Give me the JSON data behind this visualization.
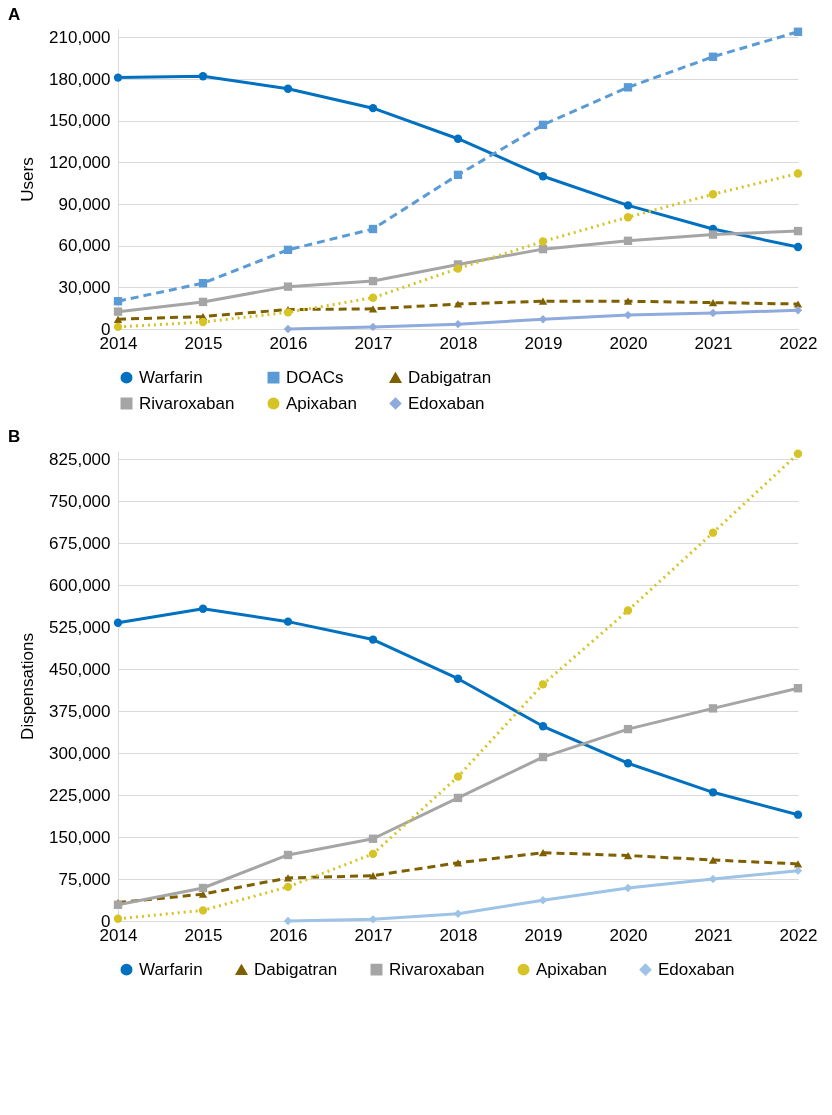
{
  "chart_data": [
    {
      "type": "line",
      "title": "A",
      "ylabel": "Users",
      "categories": [
        "2014",
        "2015",
        "2016",
        "2017",
        "2018",
        "2019",
        "2020",
        "2021",
        "2022"
      ],
      "ylim": [
        0,
        216000
      ],
      "yticks": [
        0,
        {
          "value": 30000,
          "label": "30,000"
        },
        {
          "value": 60000,
          "label": "60,000"
        },
        {
          "value": 90000,
          "label": "90,000"
        },
        {
          "value": 120000,
          "label": "120,000"
        },
        {
          "value": 150000,
          "label": "150,000"
        },
        {
          "value": 180000,
          "label": "180,000"
        },
        {
          "value": 210000,
          "label": "210,000"
        }
      ],
      "grid": "y",
      "legend": "bottom",
      "series": [
        {
          "name": "Warfarin",
          "color": "#0070c0",
          "marker": "circle",
          "line_style": "solid",
          "values": [
            181000,
            182000,
            173000,
            159000,
            137000,
            110000,
            89000,
            72000,
            59000
          ]
        },
        {
          "name": "DOACs",
          "color": "#5b9bd5",
          "marker": "square",
          "line_style": "dashed",
          "values": [
            20000,
            33000,
            57000,
            72000,
            111000,
            147000,
            174000,
            196000,
            214000
          ]
        },
        {
          "name": "Dabigatran",
          "color": "#7f6000",
          "marker": "triangle",
          "line_style": "dashed",
          "values": [
            7000,
            9000,
            14000,
            14500,
            18000,
            20000,
            20000,
            19000,
            18000
          ]
        },
        {
          "name": "Rivaroxaban",
          "color": "#a5a5a5",
          "marker": "square",
          "line_style": "solid",
          "values": [
            12500,
            19500,
            30500,
            34500,
            46500,
            57500,
            63500,
            68000,
            70500
          ]
        },
        {
          "name": "Apixaban",
          "color": "#d6c426",
          "marker": "circle",
          "line_style": "dotted",
          "values": [
            1500,
            5000,
            12000,
            22500,
            43500,
            63000,
            80500,
            97000,
            112000
          ]
        },
        {
          "name": "Edoxaban",
          "color": "#8faadc",
          "marker": "diamond",
          "line_style": "solid",
          "values": [
            null,
            null,
            0,
            1500,
            3500,
            7000,
            10000,
            11500,
            13500
          ]
        }
      ]
    },
    {
      "type": "line",
      "title": "B",
      "ylabel": "Dispensations",
      "categories": [
        "2014",
        "2015",
        "2016",
        "2017",
        "2018",
        "2019",
        "2020",
        "2021",
        "2022"
      ],
      "ylim": [
        0,
        840000
      ],
      "yticks": [
        0,
        {
          "value": 75000,
          "label": "75,000"
        },
        {
          "value": 150000,
          "label": "150,000"
        },
        {
          "value": 225000,
          "label": "225,000"
        },
        {
          "value": 300000,
          "label": "300,000"
        },
        {
          "value": 375000,
          "label": "375,000"
        },
        {
          "value": 450000,
          "label": "450,000"
        },
        {
          "value": 525000,
          "label": "525,000"
        },
        {
          "value": 600000,
          "label": "600,000"
        },
        {
          "value": 675000,
          "label": "675,000"
        },
        {
          "value": 750000,
          "label": "750,000"
        },
        {
          "value": 825000,
          "label": "825,000"
        }
      ],
      "grid": "y",
      "legend": "bottom",
      "series": [
        {
          "name": "Warfarin",
          "color": "#0070c0",
          "marker": "circle",
          "line_style": "solid",
          "values": [
            533000,
            558000,
            535000,
            503000,
            433000,
            348000,
            282000,
            230000,
            190000
          ]
        },
        {
          "name": "Dabigatran",
          "color": "#7f6000",
          "marker": "triangle",
          "line_style": "dashed",
          "values": [
            33000,
            48000,
            77000,
            81000,
            104000,
            122000,
            117000,
            109000,
            102000
          ]
        },
        {
          "name": "Rivaroxaban",
          "color": "#a5a5a5",
          "marker": "square",
          "line_style": "solid",
          "values": [
            29000,
            59000,
            118000,
            147000,
            220000,
            293000,
            343000,
            380000,
            416000
          ]
        },
        {
          "name": "Apixaban",
          "color": "#d6c426",
          "marker": "circle",
          "line_style": "dotted",
          "values": [
            4000,
            19000,
            61000,
            120000,
            258000,
            423000,
            555000,
            694000,
            835000
          ]
        },
        {
          "name": "Edoxaban",
          "color": "#9dc3e6",
          "marker": "diamond",
          "line_style": "solid",
          "values": [
            null,
            null,
            0,
            3000,
            13000,
            37000,
            59000,
            75000,
            90000
          ]
        }
      ]
    }
  ]
}
